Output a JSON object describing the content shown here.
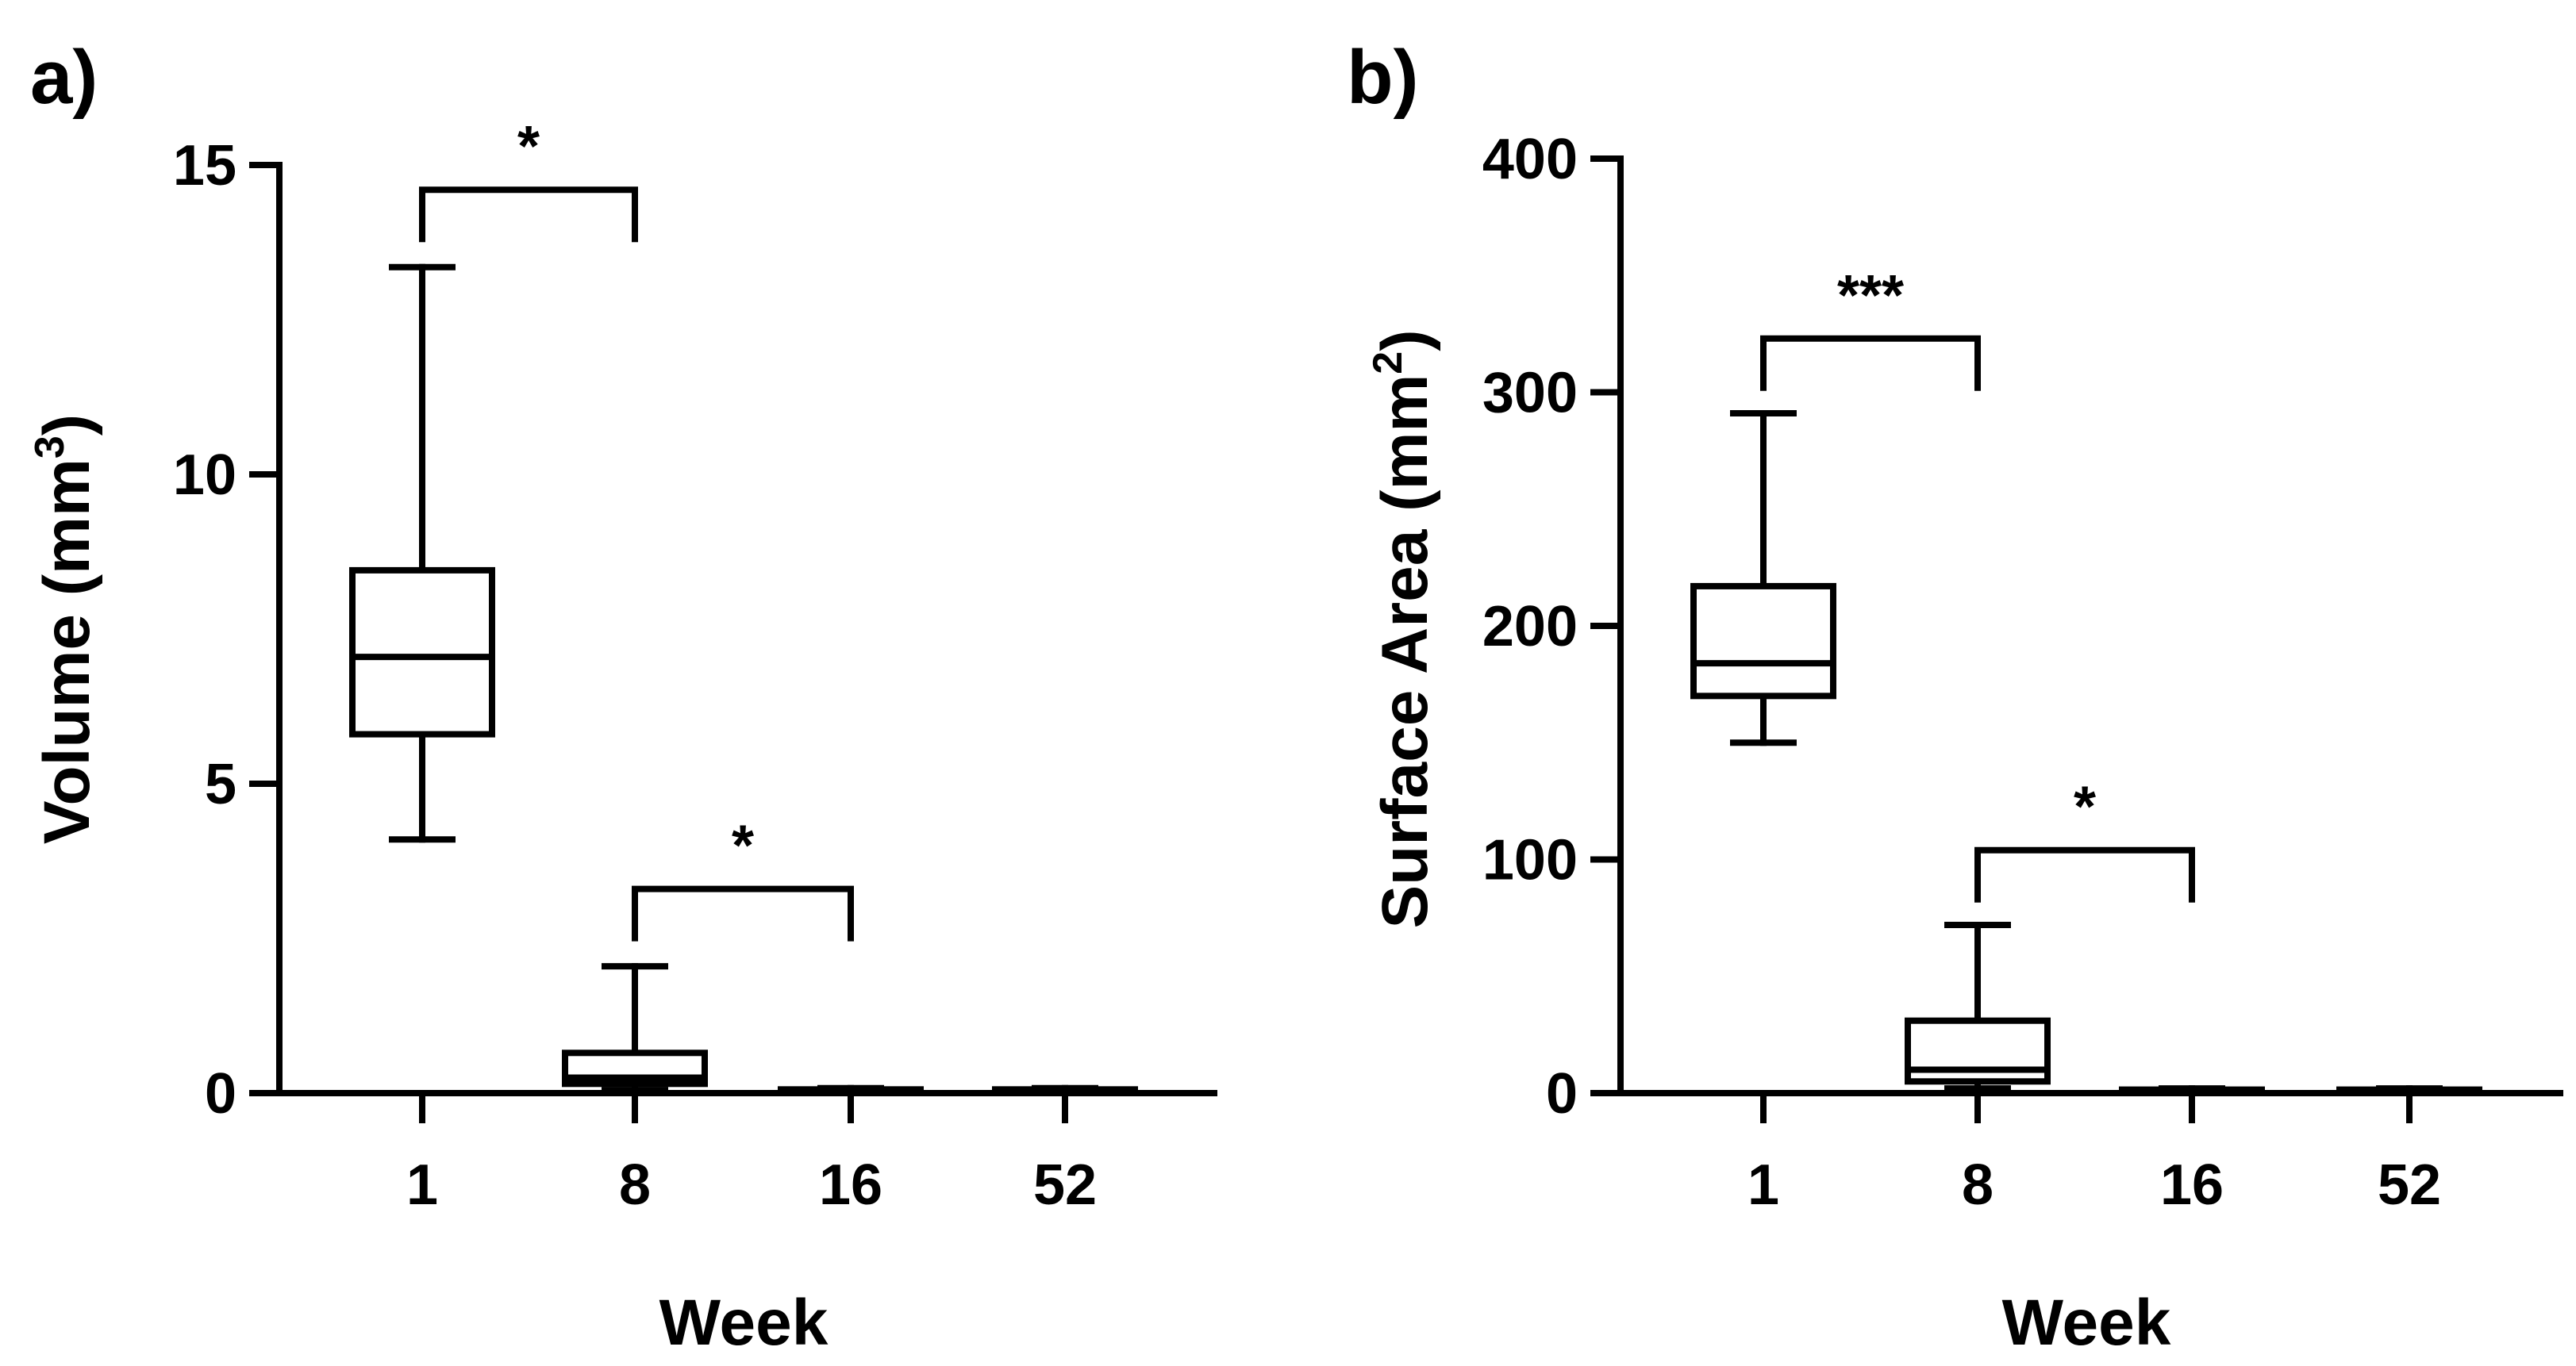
{
  "chart_data": [
    {
      "panel": "a)",
      "type": "box",
      "xlabel": "Week",
      "ylabel": "Volume (mm",
      "ylabel_sup": "3",
      "ylabel_close": ")",
      "categories": [
        "1",
        "8",
        "16",
        "52"
      ],
      "ylim": [
        0,
        15
      ],
      "yticks": [
        "0",
        "5",
        "10",
        "15"
      ],
      "ytick_values": [
        0,
        5,
        10,
        15
      ],
      "boxes": [
        {
          "category": "1",
          "min": 4.1,
          "q1": 5.8,
          "median": 7.05,
          "q3": 8.45,
          "max": 13.35
        },
        {
          "category": "8",
          "min": 0.05,
          "q1": 0.15,
          "median": 0.25,
          "q3": 0.65,
          "max": 2.05
        },
        {
          "category": "16",
          "min": 0.0,
          "q1": 0.02,
          "median": 0.03,
          "q3": 0.06,
          "max": 0.08
        },
        {
          "category": "52",
          "min": 0.0,
          "q1": 0.02,
          "median": 0.03,
          "q3": 0.06,
          "max": 0.08
        }
      ],
      "significance": [
        {
          "from": "1",
          "to": "8",
          "label": "*",
          "y": 14.6
        },
        {
          "from": "8",
          "to": "16",
          "label": "*",
          "y": 3.3
        }
      ]
    },
    {
      "panel": "b)",
      "type": "box",
      "xlabel": "Week",
      "ylabel": "Surface Area (mm",
      "ylabel_sup": "2",
      "ylabel_close": ")",
      "categories": [
        "1",
        "8",
        "16",
        "52"
      ],
      "ylim": [
        0,
        400
      ],
      "yticks": [
        "0",
        "100",
        "200",
        "300",
        "400"
      ],
      "ytick_values": [
        0,
        100,
        200,
        300,
        400
      ],
      "boxes": [
        {
          "category": "1",
          "min": 150,
          "q1": 170,
          "median": 184,
          "q3": 217,
          "max": 291
        },
        {
          "category": "8",
          "min": 2,
          "q1": 5,
          "median": 10,
          "q3": 31,
          "max": 72
        },
        {
          "category": "16",
          "min": 0,
          "q1": 0.5,
          "median": 1,
          "q3": 1.5,
          "max": 2
        },
        {
          "category": "52",
          "min": 0,
          "q1": 0.5,
          "median": 1,
          "q3": 1.5,
          "max": 2
        }
      ],
      "significance": [
        {
          "from": "1",
          "to": "8",
          "label": "***",
          "y": 323
        },
        {
          "from": "8",
          "to": "16",
          "label": "*",
          "y": 104
        }
      ]
    }
  ]
}
